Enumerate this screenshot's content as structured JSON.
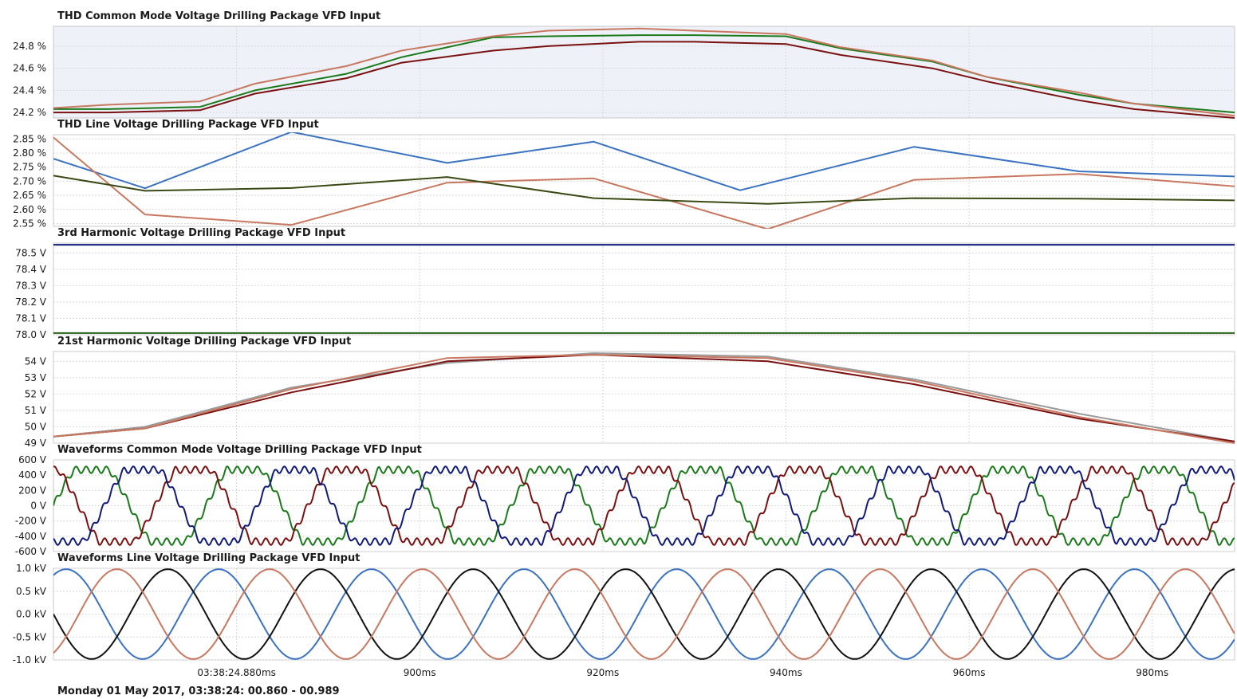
{
  "footer": {
    "text": "Monday 01 May 2017, 03:38:24: 00.860 - 00.989"
  },
  "colors": {
    "green": "#1a7a1a",
    "darkred": "#7a1010",
    "salmon": "#c87860",
    "blue": "#3a72c0",
    "olive": "#3a4a14",
    "navy": "#101a78",
    "darkgreen": "#256018",
    "gray": "#9a9a9a",
    "black": "#111111"
  },
  "chart_data": [
    {
      "type": "line",
      "title": "THD Common Mode Voltage Drilling Package VFD Input",
      "ylim": [
        24.15,
        24.98
      ],
      "yticks": [
        24.2,
        24.4,
        24.6,
        24.8
      ],
      "ytick_labels": [
        "24.2 %",
        "24.4 %",
        "24.6 %",
        "24.8 %"
      ],
      "grid": true,
      "x": [
        0.86,
        0.866,
        0.876,
        0.882,
        0.892,
        0.898,
        0.908,
        0.914,
        0.924,
        0.93,
        0.94,
        0.946,
        0.956,
        0.962,
        0.972,
        0.978,
        0.989
      ],
      "series": [
        {
          "color": "green",
          "values": [
            24.23,
            24.23,
            24.25,
            24.4,
            24.55,
            24.7,
            24.88,
            24.89,
            24.9,
            24.9,
            24.89,
            24.78,
            24.66,
            24.52,
            24.36,
            24.28,
            24.2
          ]
        },
        {
          "color": "darkred",
          "values": [
            24.2,
            24.2,
            24.22,
            24.37,
            24.51,
            24.65,
            24.76,
            24.8,
            24.84,
            24.84,
            24.82,
            24.72,
            24.6,
            24.48,
            24.31,
            24.23,
            24.15
          ]
        },
        {
          "color": "salmon",
          "values": [
            24.24,
            24.27,
            24.3,
            24.46,
            24.62,
            24.76,
            24.89,
            24.94,
            24.96,
            24.94,
            24.91,
            24.79,
            24.67,
            24.52,
            24.38,
            24.28,
            24.17
          ]
        }
      ]
    },
    {
      "type": "line",
      "title": "THD Line Voltage Drilling Package VFD Input",
      "ylim": [
        2.54,
        2.865
      ],
      "yticks": [
        2.55,
        2.6,
        2.65,
        2.7,
        2.75,
        2.8,
        2.85
      ],
      "ytick_labels": [
        "2.55 %",
        "2.60 %",
        "2.65 %",
        "2.70 %",
        "2.75 %",
        "2.80 %",
        "2.85 %"
      ],
      "grid": true,
      "series": [
        {
          "color": "blue",
          "x": [
            0.86,
            0.87,
            0.886,
            0.903,
            0.919,
            0.935,
            0.954,
            0.972,
            0.989
          ],
          "values": [
            2.78,
            2.675,
            2.875,
            2.765,
            2.84,
            2.668,
            2.822,
            2.735,
            2.717
          ]
        },
        {
          "color": "salmon",
          "x": [
            0.86,
            0.87,
            0.886,
            0.903,
            0.919,
            0.938,
            0.954,
            0.972,
            0.989
          ],
          "values": [
            2.855,
            2.582,
            2.545,
            2.695,
            2.71,
            2.53,
            2.705,
            2.726,
            2.682
          ]
        },
        {
          "color": "olive",
          "x": [
            0.86,
            0.87,
            0.886,
            0.903,
            0.919,
            0.938,
            0.954,
            0.972,
            0.989
          ],
          "values": [
            2.72,
            2.666,
            2.676,
            2.715,
            2.64,
            2.62,
            2.64,
            2.638,
            2.632
          ]
        }
      ]
    },
    {
      "type": "line",
      "title": "3rd Harmonic Voltage Drilling Package VFD Input",
      "ylim": [
        78.0,
        78.56
      ],
      "yticks": [
        78.0,
        78.1,
        78.2,
        78.3,
        78.4,
        78.5
      ],
      "ytick_labels": [
        "78.0 V",
        "78.1 V",
        "78.2 V",
        "78.3 V",
        "78.4 V",
        "78.5 V"
      ],
      "grid": true,
      "x": [
        0.86,
        0.989
      ],
      "series": [
        {
          "color": "navy",
          "values": [
            78.55,
            78.55
          ]
        },
        {
          "color": "darkgreen",
          "values": [
            78.01,
            78.01
          ]
        }
      ]
    },
    {
      "type": "line",
      "title": "21st Harmonic Voltage Drilling Package VFD Input",
      "ylim": [
        49.0,
        54.6
      ],
      "yticks": [
        49,
        50,
        51,
        52,
        53,
        54
      ],
      "ytick_labels": [
        "49 V",
        "50 V",
        "51 V",
        "52 V",
        "53 V",
        "54 V"
      ],
      "grid": true,
      "x": [
        0.86,
        0.87,
        0.886,
        0.903,
        0.919,
        0.938,
        0.954,
        0.972,
        0.989
      ],
      "series": [
        {
          "color": "gray",
          "values": [
            49.4,
            50.0,
            52.4,
            53.9,
            54.5,
            54.3,
            52.9,
            50.8,
            49.1
          ]
        },
        {
          "color": "darkred",
          "values": [
            49.4,
            49.9,
            52.1,
            54.0,
            54.4,
            54.0,
            52.6,
            50.5,
            49.1
          ]
        },
        {
          "color": "salmon",
          "values": [
            49.4,
            49.9,
            52.3,
            54.2,
            54.4,
            54.2,
            52.8,
            50.6,
            49.0
          ]
        }
      ]
    },
    {
      "type": "line",
      "title": "Waveforms Common Mode Voltage Drilling Package VFD Input",
      "ylim": [
        -600,
        600
      ],
      "yticks": [
        -600,
        -400,
        -200,
        0,
        200,
        400,
        600
      ],
      "ytick_labels": [
        "-600 V",
        "-400 V",
        "-200 V",
        "0 V",
        "200 V",
        "400 V",
        "600 V"
      ],
      "grid": true,
      "waveform": {
        "kind": "trapezoid-ripple",
        "amplitude": 470,
        "ripple": 45,
        "period_ms": 16.67,
        "ripple_period_ms": 1.1,
        "x_start": 0.86,
        "x_end": 0.989
      },
      "series": [
        {
          "color": "green",
          "phase_deg": 0
        },
        {
          "color": "darkred",
          "phase_deg": 120
        },
        {
          "color": "navy",
          "phase_deg": 240
        }
      ]
    },
    {
      "type": "line",
      "title": "Waveforms Line Voltage Drilling Package VFD Input",
      "ylim": [
        -1.0,
        1.0
      ],
      "yticks": [
        -1.0,
        -0.5,
        0.0,
        0.5,
        1.0
      ],
      "ytick_labels": [
        "-1.0 kV",
        "-0.5 kV",
        "0.0 kV",
        "0.5 kV",
        "1.0 kV"
      ],
      "grid": true,
      "waveform": {
        "kind": "sine",
        "amplitude": 0.98,
        "period_ms": 16.67,
        "x_start": 0.86,
        "x_end": 0.989
      },
      "series": [
        {
          "color": "blue",
          "phase_deg": 60
        },
        {
          "color": "black",
          "phase_deg": 180
        },
        {
          "color": "salmon",
          "phase_deg": 300
        }
      ]
    }
  ],
  "x_axis": {
    "range": [
      0.86,
      0.989
    ],
    "ticks": [
      0.88,
      0.9,
      0.92,
      0.94,
      0.96,
      0.98
    ],
    "tick_labels": [
      "03:38:24.880ms",
      "900ms",
      "920ms",
      "940ms",
      "960ms",
      "980ms"
    ]
  }
}
